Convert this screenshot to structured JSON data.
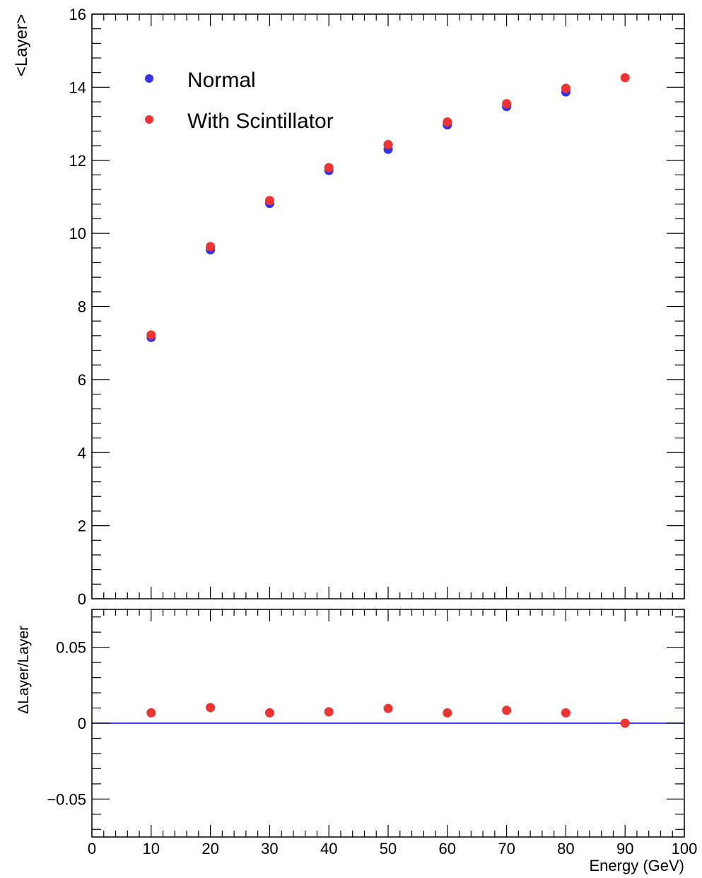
{
  "chart_data": [
    {
      "type": "scatter",
      "title": "",
      "xlabel": "",
      "ylabel": "<Layer>",
      "xlim": [
        0,
        100
      ],
      "ylim": [
        0,
        16
      ],
      "grid": false,
      "legend_position": "top-left",
      "x_ticks": [
        {
          "value": 0,
          "label": ""
        },
        {
          "value": 10,
          "label": ""
        },
        {
          "value": 20,
          "label": ""
        },
        {
          "value": 30,
          "label": ""
        },
        {
          "value": 40,
          "label": ""
        },
        {
          "value": 50,
          "label": ""
        },
        {
          "value": 60,
          "label": ""
        },
        {
          "value": 70,
          "label": ""
        },
        {
          "value": 80,
          "label": ""
        },
        {
          "value": 90,
          "label": ""
        },
        {
          "value": 100,
          "label": ""
        }
      ],
      "y_ticks": [
        {
          "value": 0,
          "label": "0"
        },
        {
          "value": 2,
          "label": "2"
        },
        {
          "value": 4,
          "label": "4"
        },
        {
          "value": 6,
          "label": "6"
        },
        {
          "value": 8,
          "label": "8"
        },
        {
          "value": 10,
          "label": "10"
        },
        {
          "value": 12,
          "label": "12"
        },
        {
          "value": 14,
          "label": "14"
        },
        {
          "value": 16,
          "label": "16"
        }
      ],
      "series": [
        {
          "name": "Normal",
          "color": "#3333ee",
          "x": [
            10,
            20,
            30,
            40,
            50,
            60,
            70,
            80
          ],
          "y": [
            7.15,
            9.55,
            10.82,
            11.72,
            12.3,
            12.97,
            13.47,
            13.87
          ]
        },
        {
          "name": "With Scintillator",
          "color": "#ee3333",
          "x": [
            10,
            20,
            30,
            40,
            50,
            60,
            70,
            80,
            90
          ],
          "y": [
            7.22,
            9.64,
            10.9,
            11.8,
            12.43,
            13.05,
            13.55,
            13.97,
            14.26
          ]
        }
      ]
    },
    {
      "type": "scatter",
      "title": "",
      "xlabel": "Energy (GeV)",
      "ylabel": "ΔLayer/Layer",
      "xlim": [
        0,
        100
      ],
      "ylim": [
        -0.075,
        0.075
      ],
      "grid": false,
      "reference_line": {
        "y": 0,
        "color": "#0000ff"
      },
      "x_ticks": [
        {
          "value": 0,
          "label": "0"
        },
        {
          "value": 10,
          "label": "10"
        },
        {
          "value": 20,
          "label": "20"
        },
        {
          "value": 30,
          "label": "30"
        },
        {
          "value": 40,
          "label": "40"
        },
        {
          "value": 50,
          "label": "50"
        },
        {
          "value": 60,
          "label": "60"
        },
        {
          "value": 70,
          "label": "70"
        },
        {
          "value": 80,
          "label": "80"
        },
        {
          "value": 90,
          "label": "90"
        },
        {
          "value": 100,
          "label": "100"
        }
      ],
      "y_ticks": [
        {
          "value": -0.05,
          "label": "−0.05"
        },
        {
          "value": 0,
          "label": "0"
        },
        {
          "value": 0.05,
          "label": "0.05"
        }
      ],
      "series": [
        {
          "color": "#ee3333",
          "x": [
            10,
            20,
            30,
            40,
            50,
            60,
            70,
            80,
            90
          ],
          "y": [
            0.0068,
            0.0103,
            0.0068,
            0.0075,
            0.0097,
            0.0068,
            0.0085,
            0.0068,
            0.0
          ]
        }
      ]
    }
  ]
}
